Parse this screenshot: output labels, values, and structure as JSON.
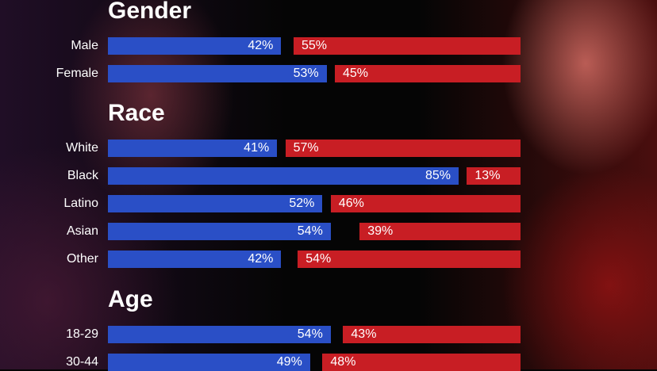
{
  "colors": {
    "dem": "#2a4fc6",
    "rep": "#c81e24"
  },
  "chart_data": {
    "type": "bar",
    "orientation": "horizontal",
    "stacked": true,
    "xlim": [
      0,
      100
    ],
    "groups": [
      {
        "title": "Gender",
        "rows": [
          {
            "label": "Male",
            "dem": 42,
            "rep": 55
          },
          {
            "label": "Female",
            "dem": 53,
            "rep": 45
          }
        ]
      },
      {
        "title": "Race",
        "rows": [
          {
            "label": "White",
            "dem": 41,
            "rep": 57
          },
          {
            "label": "Black",
            "dem": 85,
            "rep": 13
          },
          {
            "label": "Latino",
            "dem": 52,
            "rep": 46
          },
          {
            "label": "Asian",
            "dem": 54,
            "rep": 39
          },
          {
            "label": "Other",
            "dem": 42,
            "rep": 54
          }
        ]
      },
      {
        "title": "Age",
        "rows": [
          {
            "label": "18-29",
            "dem": 54,
            "rep": 43
          },
          {
            "label": "30-44",
            "dem": 49,
            "rep": 48
          }
        ]
      }
    ]
  }
}
